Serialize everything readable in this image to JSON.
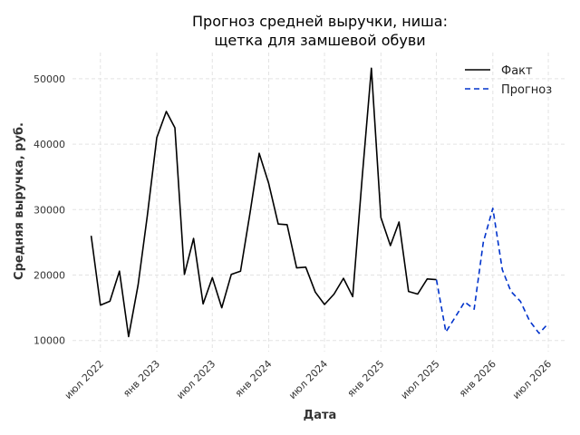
{
  "chart_data": {
    "type": "line",
    "title_lines": [
      "Прогноз средней выручки, ниша:",
      "щетка для замшевой обуви"
    ],
    "xlabel": "Дата",
    "ylabel": "Средняя выручка, руб.",
    "ylim": [
      8300,
      54000
    ],
    "xlim": [
      "2022-04-01",
      "2026-09-01"
    ],
    "grid": true,
    "legend_position": "top-right",
    "y_ticks": [
      {
        "value": 10000,
        "label": "10000"
      },
      {
        "value": 20000,
        "label": "20000"
      },
      {
        "value": 30000,
        "label": "30000"
      },
      {
        "value": 40000,
        "label": "40000"
      },
      {
        "value": 50000,
        "label": "50000"
      }
    ],
    "x_ticks": [
      {
        "date": "2022-07-01",
        "label": "июл 2022"
      },
      {
        "date": "2023-01-01",
        "label": "янв 2023"
      },
      {
        "date": "2023-07-01",
        "label": "июл 2023"
      },
      {
        "date": "2024-01-01",
        "label": "янв 2024"
      },
      {
        "date": "2024-07-01",
        "label": "июл 2024"
      },
      {
        "date": "2025-01-01",
        "label": "янв 2025"
      },
      {
        "date": "2025-07-01",
        "label": "июл 2025"
      },
      {
        "date": "2026-01-01",
        "label": "янв 2026"
      },
      {
        "date": "2026-07-01",
        "label": "июл 2026"
      }
    ],
    "series": [
      {
        "name": "Факт",
        "color": "#000000",
        "dash": "solid",
        "points": [
          {
            "x": "2022-06-01",
            "y": 26000
          },
          {
            "x": "2022-07-01",
            "y": 15400
          },
          {
            "x": "2022-08-01",
            "y": 16000
          },
          {
            "x": "2022-09-01",
            "y": 20600
          },
          {
            "x": "2022-10-01",
            "y": 10600
          },
          {
            "x": "2022-11-01",
            "y": 18500
          },
          {
            "x": "2022-12-01",
            "y": 29000
          },
          {
            "x": "2023-01-01",
            "y": 41000
          },
          {
            "x": "2023-02-01",
            "y": 45000
          },
          {
            "x": "2023-03-01",
            "y": 42500
          },
          {
            "x": "2023-04-01",
            "y": 20100
          },
          {
            "x": "2023-05-01",
            "y": 25600
          },
          {
            "x": "2023-06-01",
            "y": 15600
          },
          {
            "x": "2023-07-01",
            "y": 19600
          },
          {
            "x": "2023-08-01",
            "y": 15000
          },
          {
            "x": "2023-09-01",
            "y": 20100
          },
          {
            "x": "2023-10-01",
            "y": 20600
          },
          {
            "x": "2023-11-01",
            "y": 29500
          },
          {
            "x": "2023-12-01",
            "y": 38600
          },
          {
            "x": "2024-01-01",
            "y": 34000
          },
          {
            "x": "2024-02-01",
            "y": 27800
          },
          {
            "x": "2024-03-01",
            "y": 27700
          },
          {
            "x": "2024-04-01",
            "y": 21100
          },
          {
            "x": "2024-05-01",
            "y": 21200
          },
          {
            "x": "2024-06-01",
            "y": 17400
          },
          {
            "x": "2024-07-01",
            "y": 15500
          },
          {
            "x": "2024-08-01",
            "y": 17100
          },
          {
            "x": "2024-09-01",
            "y": 19500
          },
          {
            "x": "2024-10-01",
            "y": 16700
          },
          {
            "x": "2024-11-01",
            "y": 35000
          },
          {
            "x": "2024-12-01",
            "y": 51600
          },
          {
            "x": "2025-01-01",
            "y": 28800
          },
          {
            "x": "2025-02-01",
            "y": 24500
          },
          {
            "x": "2025-03-01",
            "y": 28100
          },
          {
            "x": "2025-04-01",
            "y": 17500
          },
          {
            "x": "2025-05-01",
            "y": 17100
          },
          {
            "x": "2025-06-01",
            "y": 19400
          },
          {
            "x": "2025-07-01",
            "y": 19300
          }
        ]
      },
      {
        "name": "Прогноз",
        "color": "#0033cc",
        "dash": "dashed",
        "points": [
          {
            "x": "2025-07-01",
            "y": 19300
          },
          {
            "x": "2025-08-01",
            "y": 11300
          },
          {
            "x": "2025-09-01",
            "y": 13600
          },
          {
            "x": "2025-10-01",
            "y": 15900
          },
          {
            "x": "2025-11-01",
            "y": 14800
          },
          {
            "x": "2025-12-01",
            "y": 25000
          },
          {
            "x": "2026-01-01",
            "y": 30200
          },
          {
            "x": "2026-02-01",
            "y": 20800
          },
          {
            "x": "2026-03-01",
            "y": 17500
          },
          {
            "x": "2026-04-01",
            "y": 16000
          },
          {
            "x": "2026-05-01",
            "y": 13000
          },
          {
            "x": "2026-06-01",
            "y": 11100
          },
          {
            "x": "2026-07-01",
            "y": 12600
          }
        ]
      }
    ]
  }
}
